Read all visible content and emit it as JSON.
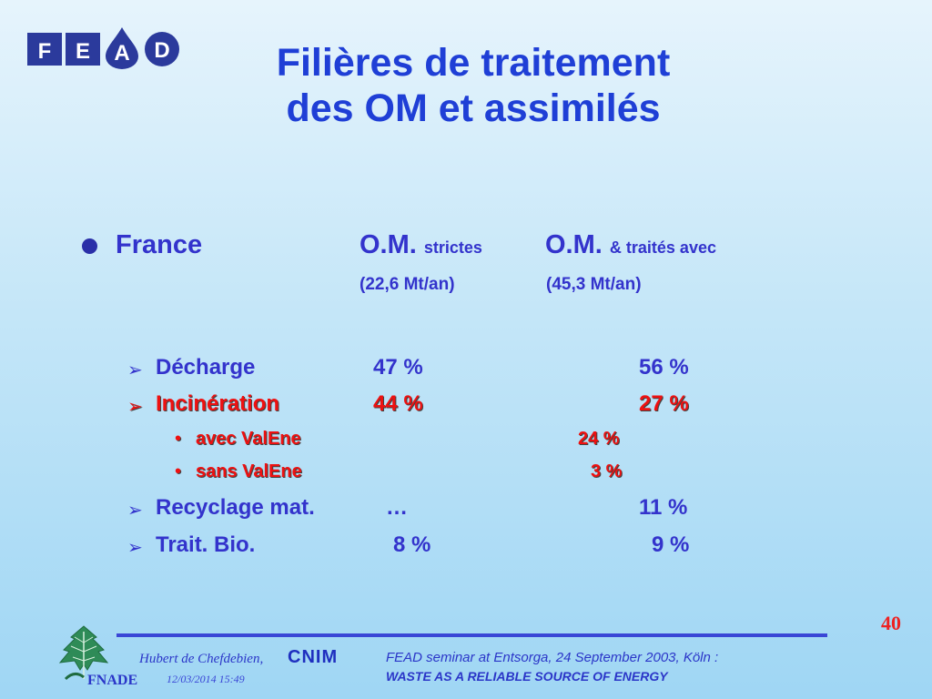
{
  "logo": {
    "letters": [
      "F",
      "E",
      "A",
      "D"
    ]
  },
  "title": {
    "line1": "Filières de traitement",
    "line2": "des OM et assimilés"
  },
  "header": {
    "country": "France",
    "col1_main": "O.M.",
    "col1_sub": "strictes",
    "col1_qty": "(22,6 Mt/an)",
    "col2_main": "O.M.",
    "col2_sub": "& traités avec",
    "col2_qty": "(45,3 Mt/an)"
  },
  "rows": [
    {
      "label": "Décharge",
      "col1": "47 %",
      "col2": "56 %"
    },
    {
      "label": "Incinération",
      "col1": "44 %",
      "col2": "27 %"
    },
    {
      "label": "avec ValEne",
      "col2": "24 %"
    },
    {
      "label": "sans ValEne",
      "col2": "3 %"
    },
    {
      "label": "Recyclage mat.",
      "col1": "…",
      "col2": "11 %"
    },
    {
      "label": "Trait. Bio.",
      "col1": "8 %",
      "col2": "9 %"
    }
  ],
  "footer": {
    "page_number": "40",
    "author": "Hubert de Chefdebien,",
    "company": "CNIM",
    "date": "12/03/2014 15:49",
    "seminar": "FEAD seminar at Entsorga, 24 September 2003, Köln :",
    "tagline": "WASTE AS A RELIABLE SOURCE OF ENERGY",
    "org": "FNADE"
  },
  "colors": {
    "title": "#1f3fd6",
    "text": "#3333cc",
    "highlight": "#ee1111"
  }
}
